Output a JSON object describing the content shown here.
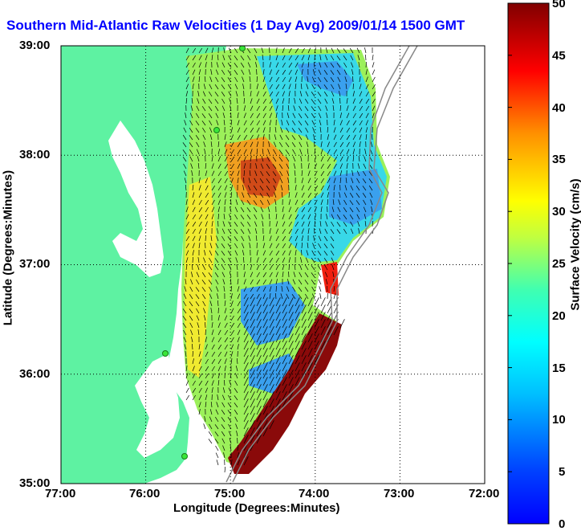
{
  "title": "Southern Mid-Atlantic Raw Velocities (1 Day Avg) 2009/01/14 1500 GMT",
  "map": {
    "xlabel": "Longitude (Degrees:Minutes)",
    "ylabel": "Latitude (Degrees:Minutes)",
    "lon_ticks": [
      "77:00",
      "76:00",
      "75:00",
      "74:00",
      "73:00",
      "72:00"
    ],
    "lat_ticks": [
      "39:00",
      "38:00",
      "37:00",
      "36:00",
      "35:00"
    ],
    "land_color": "#5ef2a2",
    "grid": true
  },
  "colorbar": {
    "label": "Surface Velocity (cm/s)",
    "ticks": [
      "50",
      "45",
      "40",
      "35",
      "30",
      "25",
      "20",
      "15",
      "10",
      "5",
      "0"
    ],
    "min": 0,
    "max": 50,
    "colormap": "jet"
  }
}
